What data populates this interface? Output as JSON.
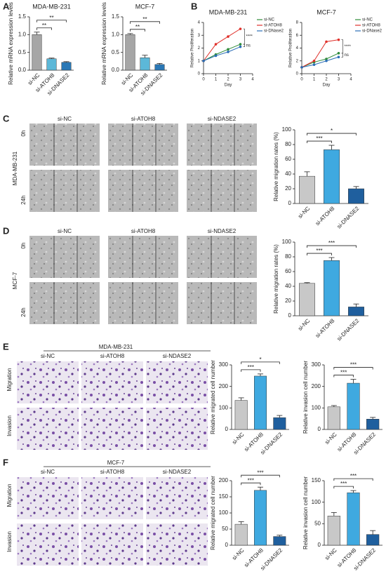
{
  "chart_data": [
    {
      "type": "bar",
      "title": "MDA-MB-231",
      "ylabel": "Relative mRNA expression levels",
      "categories": [
        "si-NC",
        "si-ATOH8",
        "si-DNASE2"
      ],
      "values": [
        1.0,
        0.32,
        0.22
      ],
      "errors": [
        0.07,
        0.02,
        0.02
      ],
      "colors": [
        "#a6a6a6",
        "#5cb8d8",
        "#2a78b6"
      ],
      "ylim": [
        0,
        1.5
      ],
      "yticks": [
        {
          "value": 0,
          "label": "0.0"
        },
        {
          "value": 0.5,
          "label": "0.5"
        },
        {
          "value": 1,
          "label": "1.0"
        },
        {
          "value": 1.5,
          "label": "1.5"
        }
      ],
      "annotations": [
        "**",
        "**"
      ]
    },
    {
      "type": "bar",
      "title": "MCF-7",
      "ylabel": "Relative mRNA expression levels",
      "categories": [
        "si-NC",
        "si-ATOH8",
        "si-DNASE2"
      ],
      "values": [
        1.0,
        0.35,
        0.16
      ],
      "errors": [
        0.03,
        0.07,
        0.03
      ],
      "colors": [
        "#a6a6a6",
        "#5cb8d8",
        "#2a78b6"
      ],
      "ylim": [
        0,
        1.5
      ],
      "yticks": [
        {
          "value": 0,
          "label": "0.0"
        },
        {
          "value": 0.5,
          "label": "0.5"
        },
        {
          "value": 1,
          "label": "1.0"
        },
        {
          "value": 1.5,
          "label": "1.5"
        }
      ],
      "annotations": [
        "**",
        "**"
      ]
    },
    {
      "type": "line",
      "title": "MDA-MB-231",
      "xlabel": "Day",
      "ylabel": "Relative Proliferation",
      "x": [
        0,
        1,
        2,
        3
      ],
      "xlim": [
        0,
        4
      ],
      "xticks": [
        0,
        1,
        2,
        3,
        4
      ],
      "ylim": [
        0,
        4
      ],
      "yticks": [
        0,
        1,
        2,
        3,
        4
      ],
      "series": [
        {
          "name": "si-NC",
          "color": "#2e8b3a",
          "values": [
            1,
            1.5,
            1.9,
            2.3
          ]
        },
        {
          "name": "si-ATOH8",
          "color": "#e0302a",
          "values": [
            1,
            2.3,
            2.9,
            3.5
          ]
        },
        {
          "name": "si-DNase2",
          "color": "#2a6db6",
          "values": [
            1,
            1.4,
            1.7,
            2.1
          ]
        }
      ],
      "annotations": [
        "****",
        "ns"
      ]
    },
    {
      "type": "line",
      "title": "MCF-7",
      "xlabel": "Day",
      "ylabel": "Relative Proliferation",
      "x": [
        0,
        1,
        2,
        3
      ],
      "xlim": [
        0,
        4
      ],
      "xticks": [
        0,
        1,
        2,
        3,
        4
      ],
      "ylim": [
        0,
        8
      ],
      "yticks": [
        0,
        2,
        4,
        6,
        8
      ],
      "series": [
        {
          "name": "si-NC",
          "color": "#2e8b3a",
          "values": [
            1,
            1.8,
            2.3,
            3.2
          ]
        },
        {
          "name": "si-ATOH8",
          "color": "#e0302a",
          "values": [
            1,
            2,
            5,
            5.3
          ]
        },
        {
          "name": "si-DNase2",
          "color": "#2a6db6",
          "values": [
            1,
            1.4,
            2,
            2.6
          ]
        }
      ],
      "annotations": [
        "****",
        "ns"
      ]
    },
    {
      "type": "bar",
      "ylabel": "Relative migration rates (%)",
      "categories": [
        "si-NC",
        "si-ATOH8",
        "si-DNASE2"
      ],
      "values": [
        37,
        73,
        20
      ],
      "errors": [
        6,
        6,
        3
      ],
      "colors": [
        "#c8c8c8",
        "#3fa9e0",
        "#1f5f9e"
      ],
      "ylim": [
        0,
        100
      ],
      "yticks": [
        0,
        20,
        40,
        60,
        80,
        100
      ],
      "annotations": [
        "***",
        "*"
      ]
    },
    {
      "type": "bar",
      "ylabel": "Relative migration rates (%)",
      "categories": [
        "si-NC",
        "si-ATOH8",
        "si-DNASE2"
      ],
      "values": [
        44,
        75,
        12
      ],
      "errors": [
        1,
        4,
        4
      ],
      "colors": [
        "#c8c8c8",
        "#3fa9e0",
        "#1f5f9e"
      ],
      "ylim": [
        0,
        100
      ],
      "yticks": [
        0,
        20,
        40,
        60,
        80,
        100
      ],
      "annotations": [
        "***",
        "***"
      ]
    },
    {
      "type": "bar",
      "ylabel": "Relative migrated cell number",
      "categories": [
        "si-NC",
        "si-ATOH8",
        "si-DNASE2"
      ],
      "values": [
        135,
        248,
        55
      ],
      "errors": [
        12,
        10,
        10
      ],
      "colors": [
        "#c8c8c8",
        "#3fa9e0",
        "#1f5f9e"
      ],
      "ylim": [
        0,
        300
      ],
      "yticks": [
        0,
        100,
        200,
        300
      ],
      "annotations": [
        "***",
        "*"
      ]
    },
    {
      "type": "bar",
      "ylabel": "Relative invasion cell number",
      "categories": [
        "si-NC",
        "si-ATOH8",
        "si-DNASE2"
      ],
      "values": [
        105,
        215,
        48
      ],
      "errors": [
        6,
        18,
        8
      ],
      "colors": [
        "#c8c8c8",
        "#3fa9e0",
        "#1f5f9e"
      ],
      "ylim": [
        0,
        300
      ],
      "yticks": [
        0,
        100,
        200,
        300
      ],
      "annotations": [
        "***",
        "***"
      ]
    },
    {
      "type": "bar",
      "ylabel": "Relative migrated cell number",
      "categories": [
        "si-NC",
        "si-ATOH8",
        "si-DNASE2"
      ],
      "values": [
        65,
        170,
        27
      ],
      "errors": [
        8,
        10,
        4
      ],
      "colors": [
        "#c8c8c8",
        "#3fa9e0",
        "#1f5f9e"
      ],
      "ylim": [
        0,
        200
      ],
      "yticks": [
        0,
        50,
        100,
        150,
        200
      ],
      "annotations": [
        "***",
        "***"
      ]
    },
    {
      "type": "bar",
      "ylabel": "Relative invasion cell number",
      "categories": [
        "si-NC",
        "si-ATOH8",
        "si-DNASE2"
      ],
      "values": [
        68,
        122,
        25
      ],
      "errors": [
        8,
        5,
        9
      ],
      "colors": [
        "#c8c8c8",
        "#3fa9e0",
        "#1f5f9e"
      ],
      "ylim": [
        0,
        150
      ],
      "yticks": [
        0,
        50,
        100,
        150
      ],
      "annotations": [
        "***",
        "***"
      ]
    }
  ],
  "figure": {
    "letters": [
      "A",
      "B",
      "C",
      "D",
      "E",
      "F"
    ],
    "wound": [
      {
        "cell": "MDA-MB-231",
        "groups": [
          "si-NC",
          "si-ATOH8",
          "si-NDASE2"
        ],
        "times": [
          "0h",
          "24h"
        ]
      },
      {
        "cell": "MCF-7",
        "groups": [
          "si-NC",
          "si-ATOH8",
          "si-NDASE2"
        ],
        "times": [
          "0h",
          "24h"
        ]
      }
    ],
    "transwell": [
      {
        "cell": "MDA-MB-231",
        "groups": [
          "si-NC",
          "si-ATOH8",
          "si-NDASE2"
        ],
        "rows": [
          "Migration",
          "Invasion"
        ]
      },
      {
        "cell": "MCF-7",
        "groups": [
          "si-NC",
          "si-ATOH8",
          "si-NDASE2"
        ],
        "rows": [
          "Migration",
          "Invasion"
        ]
      }
    ]
  }
}
